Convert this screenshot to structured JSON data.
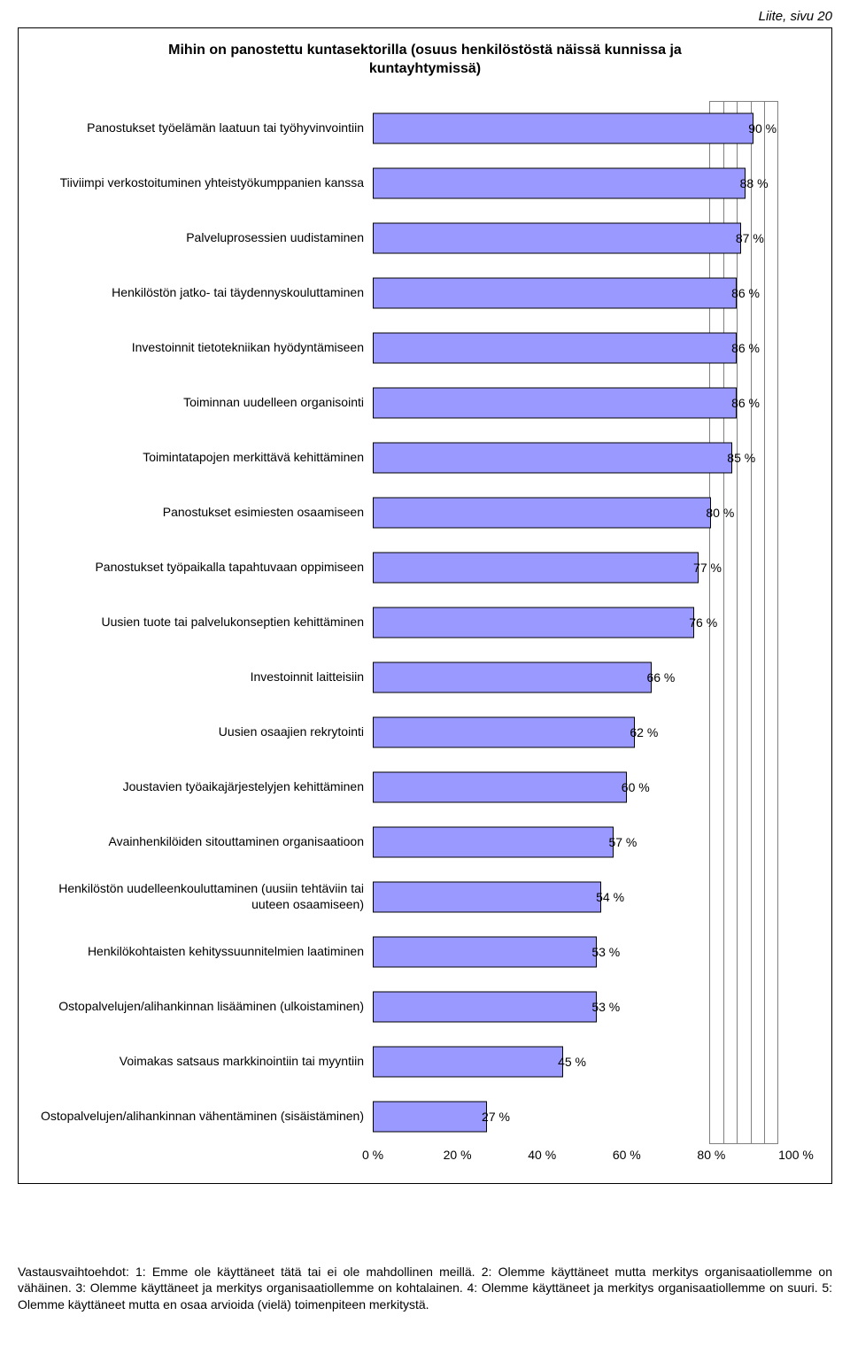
{
  "header_right": "Liite, sivu 20",
  "chart": {
    "type": "bar-horizontal",
    "title": "Mihin on panostettu kuntasektorilla (osuus henkilöstöstä näissä kunnissa ja kuntayhtymissä)",
    "bar_color": "#9999ff",
    "bar_border_color": "#000000",
    "grid_color": "#808080",
    "background_color": "#ffffff",
    "xlim_min": 0,
    "xlim_max": 100,
    "xtick_step": 20,
    "xtick_labels": [
      "0 %",
      "20 %",
      "40 %",
      "60 %",
      "80 %",
      "100 %"
    ],
    "value_suffix": " %",
    "categories": [
      {
        "label": "Panostukset työelämän laatuun tai työhyvinvointiin",
        "value": 90
      },
      {
        "label": "Tiiviimpi verkostoituminen yhteistyökumppanien kanssa",
        "value": 88
      },
      {
        "label": "Palveluprosessien uudistaminen",
        "value": 87
      },
      {
        "label": "Henkilöstön jatko- tai täydennyskouluttaminen",
        "value": 86
      },
      {
        "label": "Investoinnit tietotekniikan hyödyntämiseen",
        "value": 86
      },
      {
        "label": "Toiminnan uudelleen organisointi",
        "value": 86
      },
      {
        "label": "Toimintatapojen merkittävä kehittäminen",
        "value": 85
      },
      {
        "label": "Panostukset esimiesten osaamiseen",
        "value": 80
      },
      {
        "label": "Panostukset työpaikalla tapahtuvaan oppimiseen",
        "value": 77
      },
      {
        "label": "Uusien tuote tai palvelukonseptien kehittäminen",
        "value": 76
      },
      {
        "label": "Investoinnit laitteisiin",
        "value": 66
      },
      {
        "label": "Uusien osaajien rekrytointi",
        "value": 62
      },
      {
        "label": "Joustavien työaikajärjestelyjen kehittäminen",
        "value": 60
      },
      {
        "label": "Avainhenkilöiden sitouttaminen organisaatioon",
        "value": 57
      },
      {
        "label": "Henkilöstön uudelleenkouluttaminen (uusiin tehtäviin tai uuteen osaamiseen)",
        "value": 54
      },
      {
        "label": "Henkilökohtaisten kehityssuunnitelmien laatiminen",
        "value": 53
      },
      {
        "label": "Ostopalvelujen/alihankinnan lisääminen (ulkoistaminen)",
        "value": 53
      },
      {
        "label": "Voimakas satsaus markkinointiin tai myyntiin",
        "value": 45
      },
      {
        "label": "Ostopalvelujen/alihankinnan vähentäminen (sisäistäminen)",
        "value": 27
      }
    ]
  },
  "footer": "Vastausvaihtoehdot: 1: Emme ole käyttäneet tätä tai ei ole mahdollinen meillä. 2: Olemme käyttäneet mutta merkitys organisaatiollemme on vähäinen. 3: Olemme käyttäneet ja merkitys organisaatiollemme on kohtalainen. 4: Olemme käyttäneet ja merkitys organisaatiollemme on suuri. 5: Olemme käyttäneet mutta en osaa arvioida (vielä) toimenpiteen merkitystä."
}
